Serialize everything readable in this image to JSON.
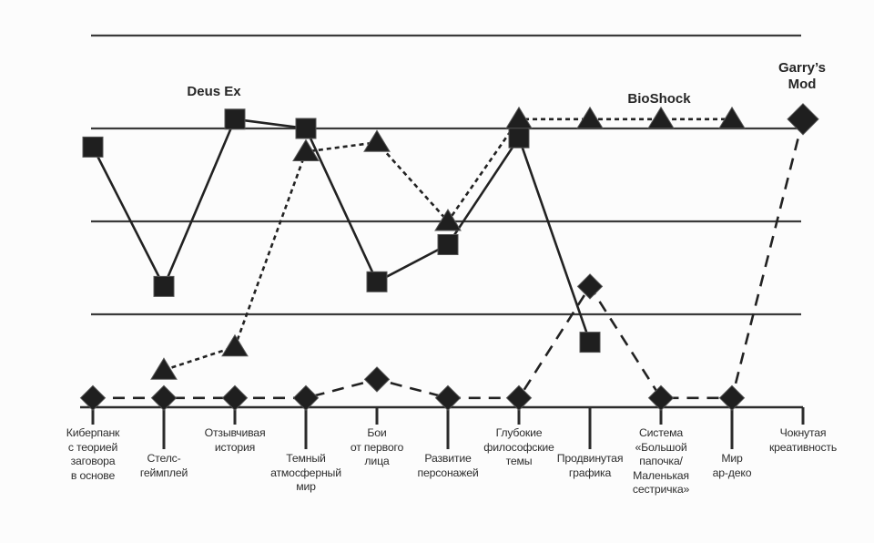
{
  "chart_data": {
    "type": "line",
    "title": "",
    "xlabel": "",
    "ylabel": "",
    "ylim": [
      0,
      4
    ],
    "grid": "horizontal",
    "legend_position": "labels-near-series",
    "axis_tick_labels_numeric": false,
    "categories": [
      {
        "label": "Киберпанк с теорией заговора в основе",
        "lines": [
          "Киберпанк",
          "с теорией",
          "заговора",
          "в основе"
        ]
      },
      {
        "label": "Стелс-геймплей",
        "lines": [
          "Стелс-",
          "геймплей"
        ]
      },
      {
        "label": "Отзывчивая история",
        "lines": [
          "Отзывчивая",
          "история"
        ]
      },
      {
        "label": "Темный атмосферный мир",
        "lines": [
          "Темный",
          "атмосферный",
          "мир"
        ]
      },
      {
        "label": "Бои от первого лица",
        "lines": [
          "Бои",
          "от первого",
          "лица"
        ]
      },
      {
        "label": "Развитие персонажей",
        "lines": [
          "Развитие",
          "персонажей"
        ]
      },
      {
        "label": "Глубокие философские темы",
        "lines": [
          "Глубокие",
          "философские",
          "темы"
        ]
      },
      {
        "label": "Продвинутая графика",
        "lines": [
          "Продвинутая",
          "графика"
        ]
      },
      {
        "label": "Система «Большой папочка/ Маленькая сестричка»",
        "lines": [
          "Система",
          "«Большой",
          "папочка/",
          "Маленькая",
          "сестричка»"
        ]
      },
      {
        "label": "Мир ар-деко",
        "lines": [
          "Мир",
          "ар-деко"
        ]
      },
      {
        "label": "Чокнутая креативность",
        "lines": [
          "Чокнутая",
          "креативность"
        ]
      }
    ],
    "series": [
      {
        "name": "Deus Ex",
        "marker": "square",
        "line": "solid",
        "values": [
          2.8,
          1.3,
          3.1,
          3.0,
          1.35,
          1.75,
          2.9,
          0.7,
          null,
          null,
          null
        ]
      },
      {
        "name": "BioShock",
        "marker": "triangle",
        "line": "dotted",
        "values": [
          null,
          0.4,
          0.65,
          2.75,
          2.85,
          2.0,
          3.1,
          3.1,
          3.1,
          3.1,
          null
        ]
      },
      {
        "name": "Garry’s Mod",
        "marker": "diamond",
        "line": "dashed",
        "values": [
          0.1,
          0.1,
          0.1,
          0.1,
          0.3,
          0.1,
          0.1,
          1.3,
          0.1,
          0.1,
          3.1
        ]
      }
    ],
    "colors": {
      "ink": "#222222",
      "background": "#fcfcfc"
    }
  }
}
